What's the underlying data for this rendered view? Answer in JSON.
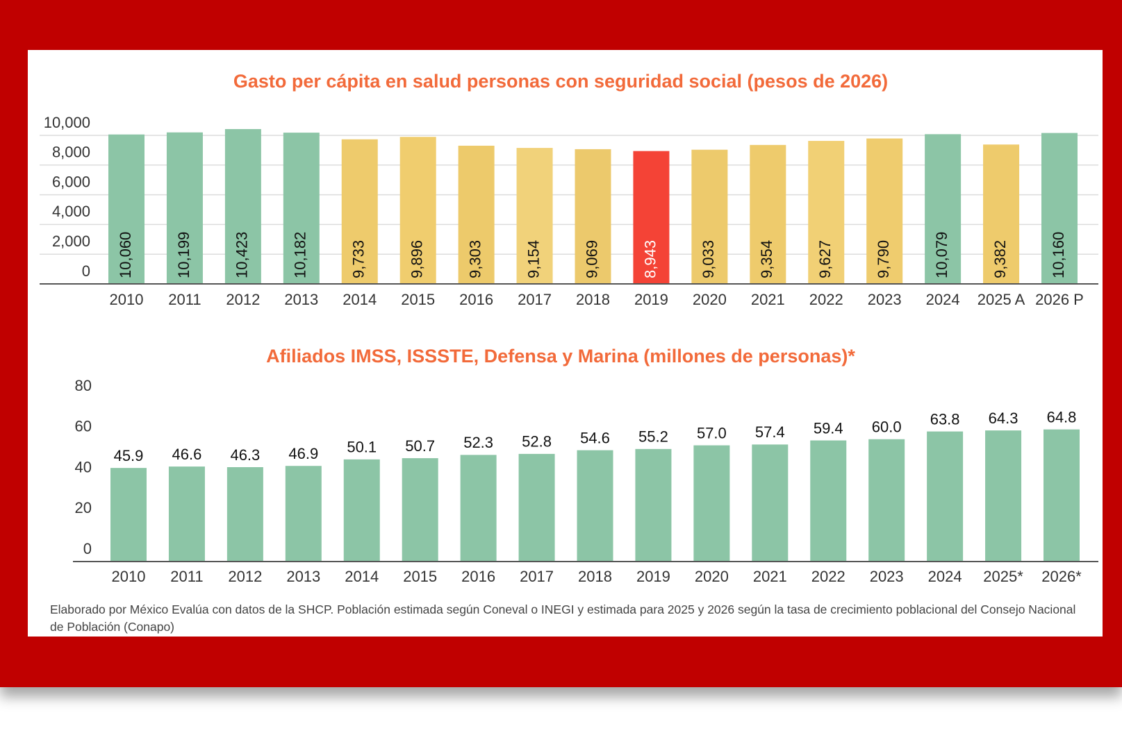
{
  "chart_data": [
    {
      "type": "bar",
      "title": "Gasto per cápita en salud personas con seguridad social (pesos de 2026)",
      "categories": [
        "2010",
        "2011",
        "2012",
        "2013",
        "2014",
        "2015",
        "2016",
        "2017",
        "2018",
        "2019",
        "2020",
        "2021",
        "2022",
        "2023",
        "2024",
        "2025 A",
        "2026 P"
      ],
      "values": [
        10060,
        10199,
        10423,
        10182,
        9733,
        9896,
        9303,
        9154,
        9069,
        8943,
        9033,
        9354,
        9627,
        9790,
        10079,
        9382,
        10160
      ],
      "value_labels": [
        "10,060",
        "10,199",
        "10,423",
        "10,182",
        "9,733",
        "9,896",
        "9,303",
        "9,154",
        "9,069",
        "8,943",
        "9,033",
        "9,354",
        "9,627",
        "9,790",
        "10,079",
        "9,382",
        "10,160"
      ],
      "colors": [
        "#8cc5a6",
        "#8cc5a6",
        "#8cc5a6",
        "#8cc5a6",
        "#eecb6c",
        "#f0cd6e",
        "#edca6b",
        "#f1d27a",
        "#ecc96c",
        "#f44336",
        "#edca6c",
        "#eecb6c",
        "#f1d075",
        "#efcc6e",
        "#8cc5a6",
        "#eecb6c",
        "#8cc5a6"
      ],
      "label_position": "inside",
      "ylim": [
        0,
        10000
      ],
      "yticks": [
        0,
        {
          "value": 2000,
          "label": "2,000"
        },
        {
          "value": 4000,
          "label": "4,000"
        },
        {
          "value": 6000,
          "label": "6,000"
        },
        {
          "value": 8000,
          "label": "8,000"
        },
        {
          "value": 10000,
          "label": "10,000"
        }
      ],
      "grid": true
    },
    {
      "type": "bar",
      "title": "Afiliados IMSS, ISSSTE, Defensa y Marina (millones de personas)*",
      "categories": [
        "2010",
        "2011",
        "2012",
        "2013",
        "2014",
        "2015",
        "2016",
        "2017",
        "2018",
        "2019",
        "2020",
        "2021",
        "2022",
        "2023",
        "2024",
        "2025*",
        "2026*"
      ],
      "values": [
        45.9,
        46.6,
        46.3,
        46.9,
        50.1,
        50.7,
        52.3,
        52.8,
        54.6,
        55.2,
        57.0,
        57.4,
        59.4,
        60.0,
        63.8,
        64.3,
        64.8
      ],
      "value_labels": [
        "45.9",
        "46.6",
        "46.3",
        "46.9",
        "50.1",
        "50.7",
        "52.3",
        "52.8",
        "54.6",
        "55.2",
        "57.0",
        "57.4",
        "59.4",
        "60.0",
        "63.8",
        "64.3",
        "64.8"
      ],
      "color": "#8cc5a6",
      "label_position": "above",
      "ylim": [
        0,
        80
      ],
      "yticks": [
        0,
        20,
        40,
        60,
        80
      ],
      "grid": false
    }
  ],
  "footnote": "Elaborado por México Evalúa con datos de la SHCP. Población estimada según Coneval  o INEGI y estimada para 2025 y 2026 según la tasa de crecimiento poblacional del Consejo Nacional de Población (Conapo)"
}
